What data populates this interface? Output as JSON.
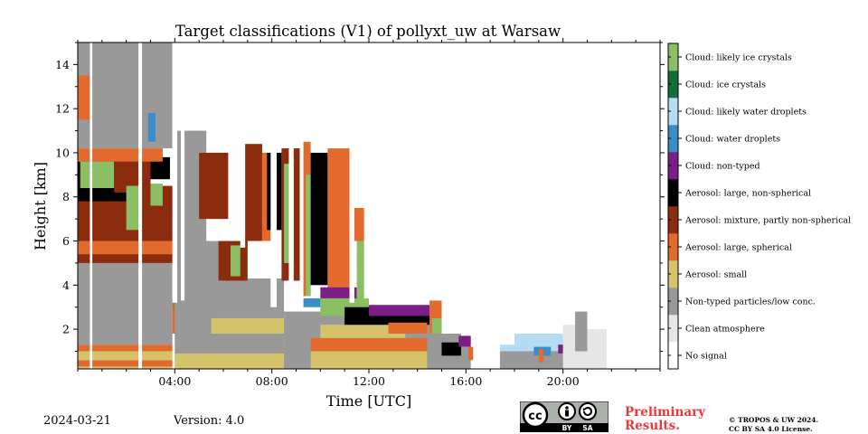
{
  "chart_data": {
    "type": "heatmap",
    "title": "Target classifications (V1) of pollyxt_uw at Warsaw",
    "xlabel": "Time [UTC]",
    "ylabel": "Height [km]",
    "x_unit": "hours UTC",
    "xlim": [
      0,
      24
    ],
    "ylim": [
      0.2,
      15
    ],
    "xticks": [
      4,
      8,
      12,
      16,
      20
    ],
    "xtick_labels": [
      "04:00",
      "08:00",
      "12:00",
      "16:00",
      "20:00"
    ],
    "yticks": [
      2,
      4,
      6,
      8,
      10,
      12,
      14
    ],
    "ytick_labels": [
      "2",
      "4",
      "6",
      "8",
      "10",
      "12",
      "14"
    ],
    "colorbar": {
      "placement": "right",
      "classes": [
        {
          "label": "No signal",
          "color": "#ffffff"
        },
        {
          "label": "Clean atmosphere",
          "color": "#e6e6e6"
        },
        {
          "label": "Non-typed particles/low conc.",
          "color": "#999999"
        },
        {
          "label": "Aerosol: small",
          "color": "#d4c36a"
        },
        {
          "label": "Aerosol: large, spherical",
          "color": "#e26a2c"
        },
        {
          "label": "Aerosol: mixture, partly non-spherical",
          "color": "#8c2c0e"
        },
        {
          "label": "Aerosol: large, non-spherical",
          "color": "#000000"
        },
        {
          "label": "Cloud: non-typed",
          "color": "#7b1f87"
        },
        {
          "label": "Cloud: water droplets",
          "color": "#3c8cc8"
        },
        {
          "label": "Cloud: likely water droplets",
          "color": "#b4dcf2"
        },
        {
          "label": "Cloud: ice crystals",
          "color": "#11703a"
        },
        {
          "label": "Cloud: likely ice crystals",
          "color": "#8cbe64"
        }
      ]
    },
    "regions": [
      {
        "cls": 3,
        "x": [
          0,
          3.9
        ],
        "y": [
          0.2,
          0.3
        ]
      },
      {
        "cls": 4,
        "x": [
          0,
          3.9
        ],
        "y": [
          0.3,
          0.6
        ]
      },
      {
        "cls": 3,
        "x": [
          0,
          3.9
        ],
        "y": [
          0.6,
          1.0
        ]
      },
      {
        "cls": 4,
        "x": [
          0,
          3.9
        ],
        "y": [
          1.0,
          1.3
        ]
      },
      {
        "cls": 2,
        "x": [
          0,
          3.9
        ],
        "y": [
          1.3,
          5.0
        ]
      },
      {
        "cls": 2,
        "x": [
          0,
          0.8
        ],
        "y": [
          5.0,
          7.5
        ]
      },
      {
        "cls": 5,
        "x": [
          0,
          4.0
        ],
        "y": [
          5.0,
          8.5
        ]
      },
      {
        "cls": 4,
        "x": [
          0,
          4.0
        ],
        "y": [
          5.4,
          6.0
        ]
      },
      {
        "cls": 6,
        "x": [
          0,
          2.0
        ],
        "y": [
          7.8,
          9.6
        ]
      },
      {
        "cls": 11,
        "x": [
          0.1,
          1.5
        ],
        "y": [
          8.4,
          9.6
        ]
      },
      {
        "cls": 5,
        "x": [
          1.5,
          3.0
        ],
        "y": [
          8.2,
          9.8
        ]
      },
      {
        "cls": 11,
        "x": [
          2.0,
          2.6
        ],
        "y": [
          6.5,
          8.5
        ]
      },
      {
        "cls": 11,
        "x": [
          3.0,
          3.5
        ],
        "y": [
          7.6,
          8.6
        ]
      },
      {
        "cls": 6,
        "x": [
          3.0,
          3.8
        ],
        "y": [
          8.8,
          9.8
        ]
      },
      {
        "cls": 4,
        "x": [
          0,
          3.5
        ],
        "y": [
          9.6,
          10.2
        ]
      },
      {
        "cls": 2,
        "x": [
          0,
          3.9
        ],
        "y": [
          10.2,
          15.0
        ]
      },
      {
        "cls": 4,
        "x": [
          0,
          0.5
        ],
        "y": [
          11.5,
          13.5
        ]
      },
      {
        "cls": 8,
        "x": [
          2.9,
          3.2
        ],
        "y": [
          10.5,
          11.8
        ]
      },
      {
        "cls": 2,
        "x": [
          4.0,
          5.3
        ],
        "y": [
          1.3,
          11.0
        ]
      },
      {
        "cls": 4,
        "x": [
          3.9,
          5.3
        ],
        "y": [
          1.8,
          3.2
        ]
      },
      {
        "cls": 8,
        "x": [
          3.9,
          4.6
        ],
        "y": [
          3.1,
          3.4
        ]
      },
      {
        "cls": 5,
        "x": [
          5.0,
          6.2
        ],
        "y": [
          7.0,
          10.0
        ]
      },
      {
        "cls": 2,
        "x": [
          4.0,
          8.5
        ],
        "y": [
          0.2,
          4.3
        ]
      },
      {
        "cls": 3,
        "x": [
          4.0,
          9.6
        ],
        "y": [
          0.2,
          0.9
        ]
      },
      {
        "cls": 3,
        "x": [
          5.5,
          9.5
        ],
        "y": [
          1.8,
          2.5
        ]
      },
      {
        "cls": 2,
        "x": [
          5.2,
          6.0
        ],
        "y": [
          4.3,
          6.0
        ]
      },
      {
        "cls": 5,
        "x": [
          5.8,
          7.0
        ],
        "y": [
          4.2,
          6.0
        ]
      },
      {
        "cls": 11,
        "x": [
          6.3,
          6.7
        ],
        "y": [
          4.4,
          5.8
        ]
      },
      {
        "cls": 5,
        "x": [
          6.8,
          7.6
        ],
        "y": [
          6.0,
          10.4
        ]
      },
      {
        "cls": 4,
        "x": [
          7.6,
          8.0
        ],
        "y": [
          6.0,
          10.0
        ]
      },
      {
        "cls": 6,
        "x": [
          7.8,
          8.4
        ],
        "y": [
          6.5,
          10.0
        ]
      },
      {
        "cls": 5,
        "x": [
          8.4,
          9.2
        ],
        "y": [
          4.2,
          10.2
        ]
      },
      {
        "cls": 11,
        "x": [
          8.5,
          8.9
        ],
        "y": [
          5.0,
          9.5
        ]
      },
      {
        "cls": 4,
        "x": [
          9.3,
          9.6
        ],
        "y": [
          3.5,
          10.5
        ]
      },
      {
        "cls": 11,
        "x": [
          9.4,
          9.6
        ],
        "y": [
          3.5,
          9.0
        ]
      },
      {
        "cls": 6,
        "x": [
          9.6,
          10.3
        ],
        "y": [
          4.0,
          10.0
        ]
      },
      {
        "cls": 4,
        "x": [
          10.3,
          11.2
        ],
        "y": [
          3.2,
          10.2
        ]
      },
      {
        "cls": 8,
        "x": [
          9.3,
          10.0
        ],
        "y": [
          3.0,
          3.4
        ]
      },
      {
        "cls": 7,
        "x": [
          10.0,
          11.5
        ],
        "y": [
          3.3,
          3.9
        ]
      },
      {
        "cls": 11,
        "x": [
          11.5,
          11.8
        ],
        "y": [
          3.2,
          6.5
        ]
      },
      {
        "cls": 4,
        "x": [
          11.4,
          11.8
        ],
        "y": [
          6.0,
          7.5
        ]
      },
      {
        "cls": 2,
        "x": [
          8.5,
          14.5
        ],
        "y": [
          0.2,
          2.8
        ]
      },
      {
        "cls": 4,
        "x": [
          9.6,
          14.5
        ],
        "y": [
          1.0,
          1.6
        ]
      },
      {
        "cls": 3,
        "x": [
          9.6,
          14.5
        ],
        "y": [
          0.2,
          1.0
        ]
      },
      {
        "cls": 3,
        "x": [
          10.0,
          13.5
        ],
        "y": [
          1.6,
          2.2
        ]
      },
      {
        "cls": 11,
        "x": [
          10.0,
          12.0
        ],
        "y": [
          2.6,
          3.4
        ]
      },
      {
        "cls": 6,
        "x": [
          11.0,
          14.5
        ],
        "y": [
          2.2,
          3.0
        ]
      },
      {
        "cls": 7,
        "x": [
          12.0,
          14.5
        ],
        "y": [
          2.6,
          3.1
        ]
      },
      {
        "cls": 4,
        "x": [
          12.8,
          14.4
        ],
        "y": [
          1.8,
          2.3
        ]
      },
      {
        "cls": 4,
        "x": [
          14.5,
          15.0
        ],
        "y": [
          1.8,
          3.3
        ]
      },
      {
        "cls": 11,
        "x": [
          14.6,
          15.0
        ],
        "y": [
          1.8,
          2.5
        ]
      },
      {
        "cls": 2,
        "x": [
          14.4,
          15.8
        ],
        "y": [
          0.2,
          1.8
        ]
      },
      {
        "cls": 6,
        "x": [
          15.0,
          15.8
        ],
        "y": [
          0.8,
          1.4
        ]
      },
      {
        "cls": 7,
        "x": [
          15.7,
          16.2
        ],
        "y": [
          1.2,
          1.7
        ]
      },
      {
        "cls": 2,
        "x": [
          15.8,
          16.2
        ],
        "y": [
          0.2,
          1.2
        ]
      },
      {
        "cls": 4,
        "x": [
          16.1,
          16.3
        ],
        "y": [
          0.6,
          1.2
        ]
      },
      {
        "cls": 2,
        "x": [
          17.4,
          18.0
        ],
        "y": [
          0.2,
          1.0
        ]
      },
      {
        "cls": 9,
        "x": [
          17.4,
          18.0
        ],
        "y": [
          1.0,
          1.3
        ]
      },
      {
        "cls": 2,
        "x": [
          18.0,
          21.0
        ],
        "y": [
          0.2,
          1.6
        ]
      },
      {
        "cls": 9,
        "x": [
          18.0,
          20.0
        ],
        "y": [
          1.0,
          1.8
        ]
      },
      {
        "cls": 8,
        "x": [
          18.8,
          19.5
        ],
        "y": [
          0.8,
          1.2
        ]
      },
      {
        "cls": 4,
        "x": [
          19.0,
          19.2
        ],
        "y": [
          0.5,
          1.1
        ]
      },
      {
        "cls": 7,
        "x": [
          19.8,
          20.0
        ],
        "y": [
          0.9,
          1.3
        ]
      },
      {
        "cls": 1,
        "x": [
          20.0,
          21.0
        ],
        "y": [
          0.2,
          2.2
        ]
      },
      {
        "cls": 2,
        "x": [
          20.5,
          21.0
        ],
        "y": [
          1.0,
          2.8
        ]
      },
      {
        "cls": 1,
        "x": [
          21.0,
          21.8
        ],
        "y": [
          0.2,
          2.0
        ]
      }
    ],
    "gaps": [
      {
        "x": [
          0.5,
          0.6
        ],
        "y": [
          0.2,
          15.0
        ]
      },
      {
        "x": [
          2.5,
          2.65
        ],
        "y": [
          0.2,
          15.0
        ]
      },
      {
        "x": [
          3.9,
          4.1
        ],
        "y": [
          3.2,
          15.0
        ]
      },
      {
        "x": [
          4.25,
          4.4
        ],
        "y": [
          3.3,
          15.0
        ]
      },
      {
        "x": [
          6.7,
          6.9
        ],
        "y": [
          5.7,
          15.0
        ]
      },
      {
        "x": [
          7.95,
          8.2
        ],
        "y": [
          3.0,
          15.0
        ]
      },
      {
        "x": [
          8.7,
          8.9
        ],
        "y": [
          3.0,
          15.0
        ]
      },
      {
        "x": [
          9.15,
          9.3
        ],
        "y": [
          3.0,
          15.0
        ]
      },
      {
        "x": [
          11.2,
          11.4
        ],
        "y": [
          3.2,
          15.0
        ]
      },
      {
        "x": [
          16.3,
          17.3
        ],
        "y": [
          0.2,
          15.0
        ]
      },
      {
        "x": [
          21.8,
          24.0
        ],
        "y": [
          0.2,
          15.0
        ]
      }
    ]
  },
  "footer": {
    "date": "2024-03-21",
    "version": "Version: 4.0",
    "preliminary": "Preliminary Results.",
    "copyright_line1": "© TROPOS & UW 2024.",
    "copyright_line2": "CC BY SA 4.0 License.",
    "license_badge": {
      "cc": "cc",
      "by": "BY",
      "sa": "SA"
    }
  }
}
